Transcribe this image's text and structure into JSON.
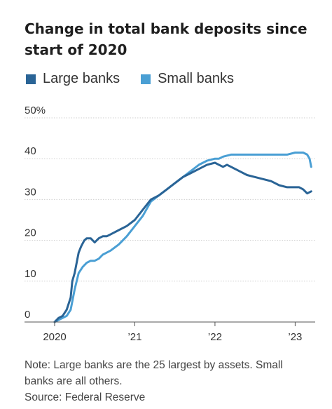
{
  "chart_data": {
    "type": "line",
    "title": "Change in total bank deposits since start of 2020",
    "xlabel": "",
    "ylabel": "",
    "ylim": [
      0,
      50
    ],
    "xlim": [
      2020.0,
      2023.25
    ],
    "y_ticks": [
      0,
      10,
      20,
      30,
      40,
      50
    ],
    "y_tick_labels": [
      "0",
      "10",
      "20",
      "30",
      "40",
      "50%"
    ],
    "x_ticks": [
      2020,
      2021,
      2022,
      2023
    ],
    "x_tick_labels": [
      "2020",
      "’21",
      "’22",
      "’23"
    ],
    "grid": true,
    "legend_position": "top-left",
    "series": [
      {
        "name": "Large banks",
        "color": "#2a6496",
        "x": [
          2020.0,
          2020.05,
          2020.1,
          2020.15,
          2020.2,
          2020.22,
          2020.25,
          2020.28,
          2020.3,
          2020.33,
          2020.37,
          2020.4,
          2020.45,
          2020.5,
          2020.55,
          2020.6,
          2020.65,
          2020.7,
          2020.8,
          2020.9,
          2021.0,
          2021.1,
          2021.2,
          2021.3,
          2021.4,
          2021.5,
          2021.6,
          2021.7,
          2021.8,
          2021.9,
          2022.0,
          2022.05,
          2022.1,
          2022.15,
          2022.2,
          2022.3,
          2022.4,
          2022.5,
          2022.6,
          2022.7,
          2022.8,
          2022.9,
          2023.0,
          2023.05,
          2023.1,
          2023.15,
          2023.2
        ],
        "y": [
          0,
          1,
          1.5,
          3,
          6,
          10,
          12,
          15,
          17,
          18.5,
          20,
          20.5,
          20.5,
          19.5,
          20.5,
          21,
          21,
          21.5,
          22.5,
          23.5,
          25,
          27.5,
          30,
          31,
          32.5,
          34,
          35.5,
          36.5,
          37.5,
          38.5,
          39,
          38.5,
          38,
          38.5,
          38,
          37,
          36,
          35.5,
          35,
          34.5,
          33.5,
          33,
          33,
          33,
          32.5,
          31.5,
          32
        ]
      },
      {
        "name": "Small banks",
        "color": "#4a9fd4",
        "x": [
          2020.0,
          2020.05,
          2020.1,
          2020.15,
          2020.2,
          2020.25,
          2020.3,
          2020.35,
          2020.4,
          2020.45,
          2020.5,
          2020.55,
          2020.6,
          2020.65,
          2020.7,
          2020.8,
          2020.9,
          2021.0,
          2021.1,
          2021.2,
          2021.3,
          2021.4,
          2021.5,
          2021.6,
          2021.7,
          2021.8,
          2021.9,
          2022.0,
          2022.05,
          2022.1,
          2022.2,
          2022.3,
          2022.4,
          2022.5,
          2022.6,
          2022.7,
          2022.8,
          2022.9,
          2023.0,
          2023.05,
          2023.1,
          2023.15,
          2023.18,
          2023.2
        ],
        "y": [
          0,
          0.5,
          1,
          1.5,
          3,
          8,
          12,
          13.5,
          14.5,
          15,
          15,
          15.5,
          16.5,
          17,
          17.5,
          19,
          21,
          23.5,
          26,
          29.5,
          31,
          32.5,
          34,
          35.5,
          37,
          38.5,
          39.5,
          40,
          40,
          40.5,
          41,
          41,
          41,
          41,
          41,
          41,
          41,
          41,
          41.5,
          41.5,
          41.5,
          41,
          40,
          38
        ]
      }
    ]
  },
  "notes": {
    "line1": "Note: Large banks are the 25 largest by assets. Small",
    "line2": "banks are all others.",
    "source": "Source: Federal Reserve"
  }
}
